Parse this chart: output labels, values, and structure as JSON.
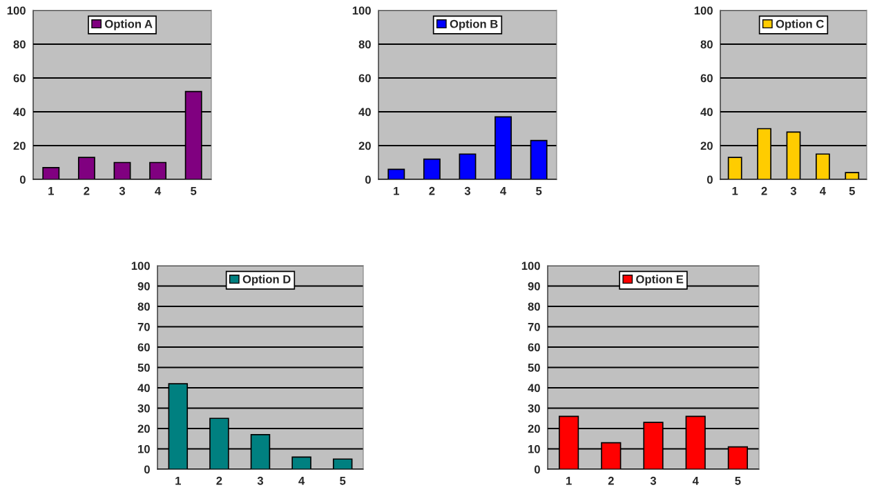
{
  "chart_data": [
    {
      "type": "bar",
      "categories": [
        "1",
        "2",
        "3",
        "4",
        "5"
      ],
      "series": [
        {
          "name": "Option A",
          "color": "#800080",
          "values": [
            7,
            13,
            10,
            10,
            52
          ]
        }
      ],
      "ylim": [
        0,
        100
      ],
      "yticks": [
        0,
        20,
        40,
        60,
        80,
        100
      ],
      "grid": "y",
      "legend": "top"
    },
    {
      "type": "bar",
      "categories": [
        "1",
        "2",
        "3",
        "4",
        "5"
      ],
      "series": [
        {
          "name": "Option B",
          "color": "#0000ff",
          "values": [
            6,
            12,
            15,
            37,
            23
          ]
        }
      ],
      "ylim": [
        0,
        100
      ],
      "yticks": [
        0,
        20,
        40,
        60,
        80,
        100
      ],
      "grid": "y",
      "legend": "top"
    },
    {
      "type": "bar",
      "categories": [
        "1",
        "2",
        "3",
        "4",
        "5"
      ],
      "series": [
        {
          "name": "Option C",
          "color": "#ffcc00",
          "values": [
            13,
            30,
            28,
            15,
            4
          ]
        }
      ],
      "ylim": [
        0,
        100
      ],
      "yticks": [
        0,
        20,
        40,
        60,
        80,
        100
      ],
      "grid": "y",
      "legend": "top"
    },
    {
      "type": "bar",
      "categories": [
        "1",
        "2",
        "3",
        "4",
        "5"
      ],
      "series": [
        {
          "name": "Option D",
          "color": "#008080",
          "values": [
            42,
            25,
            17,
            6,
            5
          ]
        }
      ],
      "ylim": [
        0,
        100
      ],
      "yticks": [
        0,
        10,
        20,
        30,
        40,
        50,
        60,
        70,
        80,
        90,
        100
      ],
      "grid": "y",
      "legend": "top"
    },
    {
      "type": "bar",
      "categories": [
        "1",
        "2",
        "3",
        "4",
        "5"
      ],
      "series": [
        {
          "name": "Option E",
          "color": "#ff0000",
          "values": [
            26,
            13,
            23,
            26,
            11
          ]
        }
      ],
      "ylim": [
        0,
        100
      ],
      "yticks": [
        0,
        10,
        20,
        30,
        40,
        50,
        60,
        70,
        80,
        90,
        100
      ],
      "grid": "y",
      "legend": "top"
    }
  ]
}
